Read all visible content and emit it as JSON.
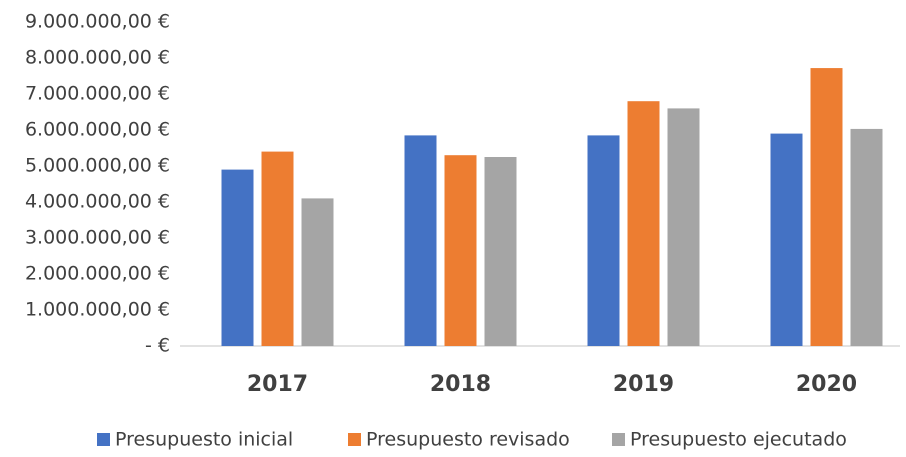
{
  "chart_data": {
    "type": "bar",
    "categories": [
      "2017",
      "2018",
      "2019",
      "2020"
    ],
    "series": [
      {
        "name": "Presupuesto inicial",
        "color": "#4472c4",
        "values": [
          4900000,
          5850000,
          5850000,
          5900000
        ]
      },
      {
        "name": "Presupuesto revisado",
        "color": "#ed7d31",
        "values": [
          5400000,
          5300000,
          6800000,
          7720000
        ]
      },
      {
        "name": "Presupuesto ejecutado",
        "color": "#a5a5a5",
        "values": [
          4100000,
          5250000,
          6600000,
          6030000
        ]
      }
    ],
    "ylim": [
      0,
      9000000
    ],
    "yticks": [
      {
        "value": 0,
        "label": "-   €"
      },
      {
        "value": 1000000,
        "label": "1.000.000,00 €"
      },
      {
        "value": 2000000,
        "label": "2.000.000,00 €"
      },
      {
        "value": 3000000,
        "label": "3.000.000,00 €"
      },
      {
        "value": 4000000,
        "label": "4.000.000,00 €"
      },
      {
        "value": 5000000,
        "label": "5.000.000,00 €"
      },
      {
        "value": 6000000,
        "label": "6.000.000,00 €"
      },
      {
        "value": 7000000,
        "label": "7.000.000,00 €"
      },
      {
        "value": 8000000,
        "label": "8.000.000,00 €"
      },
      {
        "value": 9000000,
        "label": "9.000.000,00 €"
      }
    ],
    "grid": false,
    "legend": "bottom"
  }
}
